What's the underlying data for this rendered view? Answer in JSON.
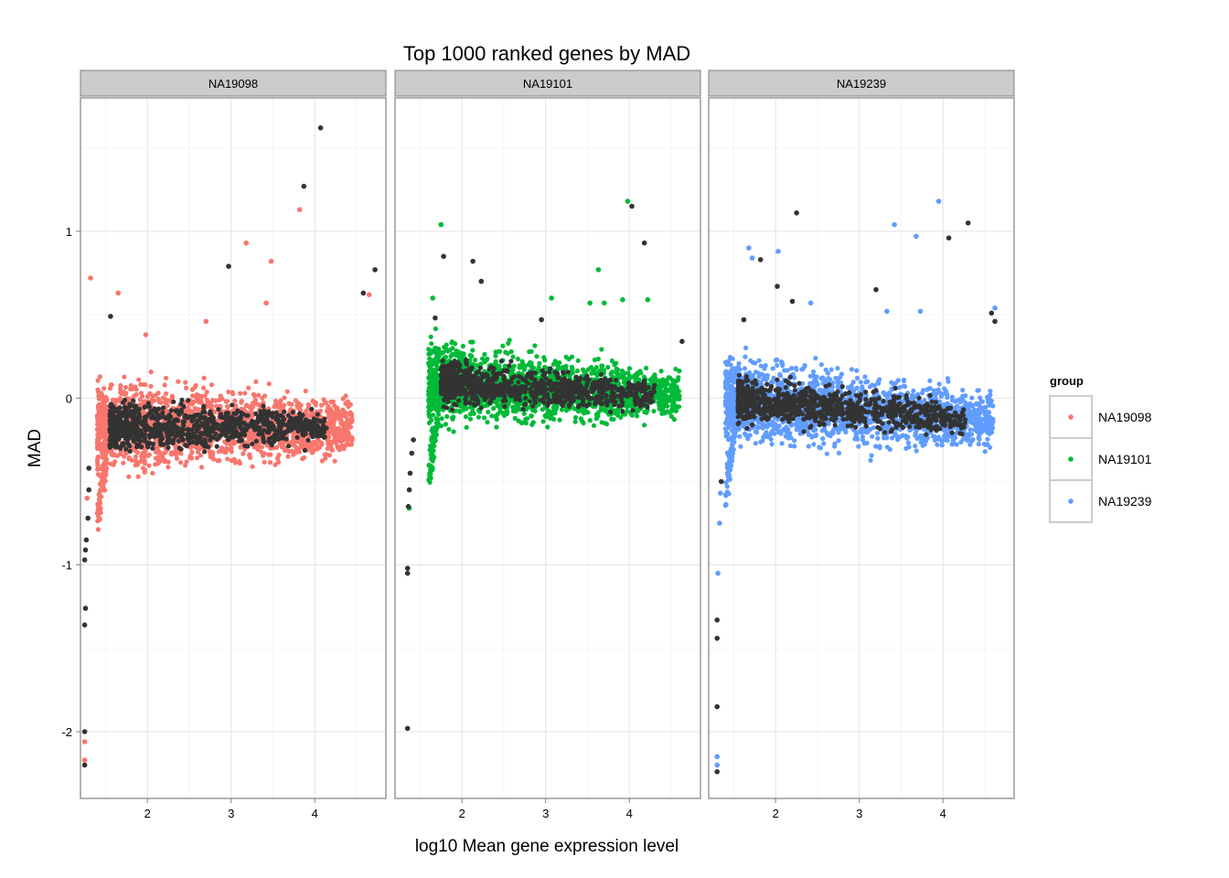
{
  "chart_data": {
    "type": "scatter",
    "title": "Top 1000 ranked genes by MAD",
    "xlabel": "log10 Mean gene expression level",
    "ylabel": "MAD",
    "xlim": [
      1.2,
      4.85
    ],
    "ylim": [
      -2.4,
      1.8
    ],
    "x_ticks": [
      2,
      3,
      4
    ],
    "y_ticks": [
      1,
      0,
      -1,
      -2
    ],
    "x_tick_labels": [
      "2",
      "3",
      "4"
    ],
    "y_tick_labels": [
      "1",
      "0",
      "-1",
      "-2"
    ],
    "grid": true,
    "legend": {
      "title": "group",
      "placement": "right",
      "entries": [
        {
          "label": "NA19098",
          "color": "#F8766D"
        },
        {
          "label": "NA19101",
          "color": "#00BA38"
        },
        {
          "label": "NA19239",
          "color": "#619CFF"
        }
      ]
    },
    "highlight_color": "#333333",
    "panels": [
      {
        "strip": "NA19098",
        "color": "#F8766D",
        "cloud": {
          "x_range": [
            1.4,
            4.45
          ],
          "y_start": -0.17,
          "y_end": -0.17,
          "y_spread": 0.22
        },
        "notable_points": [
          {
            "x": 4.07,
            "y": 1.62,
            "top": true
          },
          {
            "x": 3.87,
            "y": 1.27,
            "top": true
          },
          {
            "x": 3.82,
            "y": 1.13,
            "top": false
          },
          {
            "x": 3.18,
            "y": 0.93,
            "top": false
          },
          {
            "x": 2.97,
            "y": 0.79,
            "top": true
          },
          {
            "x": 3.48,
            "y": 0.82,
            "top": false
          },
          {
            "x": 4.72,
            "y": 0.77,
            "top": true
          },
          {
            "x": 4.58,
            "y": 0.63,
            "top": true
          },
          {
            "x": 4.65,
            "y": 0.62,
            "top": false
          },
          {
            "x": 1.32,
            "y": 0.72,
            "top": false
          },
          {
            "x": 1.65,
            "y": 0.63,
            "top": false
          },
          {
            "x": 3.42,
            "y": 0.57,
            "top": false
          },
          {
            "x": 2.7,
            "y": 0.46,
            "top": false
          },
          {
            "x": 1.56,
            "y": 0.49,
            "top": true
          },
          {
            "x": 1.98,
            "y": 0.38,
            "top": false
          },
          {
            "x": 1.3,
            "y": -0.42,
            "top": true
          },
          {
            "x": 1.3,
            "y": -0.55,
            "top": true
          },
          {
            "x": 1.28,
            "y": -0.6,
            "top": false
          },
          {
            "x": 1.29,
            "y": -0.72,
            "top": true
          },
          {
            "x": 1.27,
            "y": -0.85,
            "top": true
          },
          {
            "x": 1.26,
            "y": -0.91,
            "top": true
          },
          {
            "x": 1.25,
            "y": -0.97,
            "top": true
          },
          {
            "x": 1.26,
            "y": -1.26,
            "top": true
          },
          {
            "x": 1.25,
            "y": -1.36,
            "top": true
          },
          {
            "x": 1.25,
            "y": -2.0,
            "top": true
          },
          {
            "x": 1.25,
            "y": -2.06,
            "top": false
          },
          {
            "x": 1.25,
            "y": -2.17,
            "top": false
          },
          {
            "x": 1.25,
            "y": -2.2,
            "top": true
          }
        ]
      },
      {
        "strip": "NA19101",
        "color": "#00BA38",
        "cloud": {
          "x_range": [
            1.6,
            4.6
          ],
          "y_start": 0.1,
          "y_end": 0.01,
          "y_spread": 0.2
        },
        "notable_points": [
          {
            "x": 3.98,
            "y": 1.18,
            "top": false
          },
          {
            "x": 4.03,
            "y": 1.15,
            "top": true
          },
          {
            "x": 1.75,
            "y": 1.04,
            "top": false
          },
          {
            "x": 4.18,
            "y": 0.93,
            "top": true
          },
          {
            "x": 1.78,
            "y": 0.85,
            "top": true
          },
          {
            "x": 2.13,
            "y": 0.82,
            "top": true
          },
          {
            "x": 3.63,
            "y": 0.77,
            "top": false
          },
          {
            "x": 2.23,
            "y": 0.7,
            "top": true
          },
          {
            "x": 3.07,
            "y": 0.6,
            "top": false
          },
          {
            "x": 4.22,
            "y": 0.59,
            "top": false
          },
          {
            "x": 3.92,
            "y": 0.59,
            "top": false
          },
          {
            "x": 3.53,
            "y": 0.57,
            "top": false
          },
          {
            "x": 3.7,
            "y": 0.57,
            "top": false
          },
          {
            "x": 1.65,
            "y": 0.6,
            "top": false
          },
          {
            "x": 2.95,
            "y": 0.47,
            "top": true
          },
          {
            "x": 1.68,
            "y": 0.48,
            "top": true
          },
          {
            "x": 4.63,
            "y": 0.34,
            "top": true
          },
          {
            "x": 1.42,
            "y": -0.25,
            "top": true
          },
          {
            "x": 1.4,
            "y": -0.33,
            "top": true
          },
          {
            "x": 1.38,
            "y": -0.45,
            "top": true
          },
          {
            "x": 1.37,
            "y": -0.55,
            "top": true
          },
          {
            "x": 1.37,
            "y": -0.66,
            "top": false
          },
          {
            "x": 1.36,
            "y": -0.65,
            "top": true
          },
          {
            "x": 1.35,
            "y": -1.02,
            "top": true
          },
          {
            "x": 1.35,
            "y": -1.05,
            "top": true
          },
          {
            "x": 1.35,
            "y": -1.98,
            "top": true
          }
        ]
      },
      {
        "strip": "NA19239",
        "color": "#619CFF",
        "cloud": {
          "x_range": [
            1.4,
            4.6
          ],
          "y_start": 0.0,
          "y_end": -0.14,
          "y_spread": 0.22
        },
        "notable_points": [
          {
            "x": 3.95,
            "y": 1.18,
            "top": false
          },
          {
            "x": 2.25,
            "y": 1.11,
            "top": true
          },
          {
            "x": 4.3,
            "y": 1.05,
            "top": true
          },
          {
            "x": 3.42,
            "y": 1.04,
            "top": false
          },
          {
            "x": 3.68,
            "y": 0.97,
            "top": false
          },
          {
            "x": 4.07,
            "y": 0.96,
            "top": true
          },
          {
            "x": 1.68,
            "y": 0.9,
            "top": false
          },
          {
            "x": 2.03,
            "y": 0.88,
            "top": false
          },
          {
            "x": 1.82,
            "y": 0.83,
            "top": true
          },
          {
            "x": 1.72,
            "y": 0.84,
            "top": false
          },
          {
            "x": 2.02,
            "y": 0.67,
            "top": true
          },
          {
            "x": 3.2,
            "y": 0.65,
            "top": true
          },
          {
            "x": 2.2,
            "y": 0.58,
            "top": true
          },
          {
            "x": 2.42,
            "y": 0.57,
            "top": false
          },
          {
            "x": 4.62,
            "y": 0.54,
            "top": false
          },
          {
            "x": 4.58,
            "y": 0.51,
            "top": true
          },
          {
            "x": 4.62,
            "y": 0.46,
            "top": true
          },
          {
            "x": 1.62,
            "y": 0.47,
            "top": true
          },
          {
            "x": 3.33,
            "y": 0.52,
            "top": false
          },
          {
            "x": 3.73,
            "y": 0.52,
            "top": false
          },
          {
            "x": 1.35,
            "y": -0.5,
            "top": true
          },
          {
            "x": 1.34,
            "y": -0.57,
            "top": false
          },
          {
            "x": 1.33,
            "y": -0.75,
            "top": false
          },
          {
            "x": 1.31,
            "y": -1.05,
            "top": false
          },
          {
            "x": 1.3,
            "y": -1.33,
            "top": true
          },
          {
            "x": 1.3,
            "y": -1.44,
            "top": true
          },
          {
            "x": 1.3,
            "y": -1.85,
            "top": true
          },
          {
            "x": 1.3,
            "y": -2.15,
            "top": false
          },
          {
            "x": 1.3,
            "y": -2.2,
            "top": false
          },
          {
            "x": 1.3,
            "y": -2.24,
            "top": true
          }
        ]
      }
    ]
  }
}
